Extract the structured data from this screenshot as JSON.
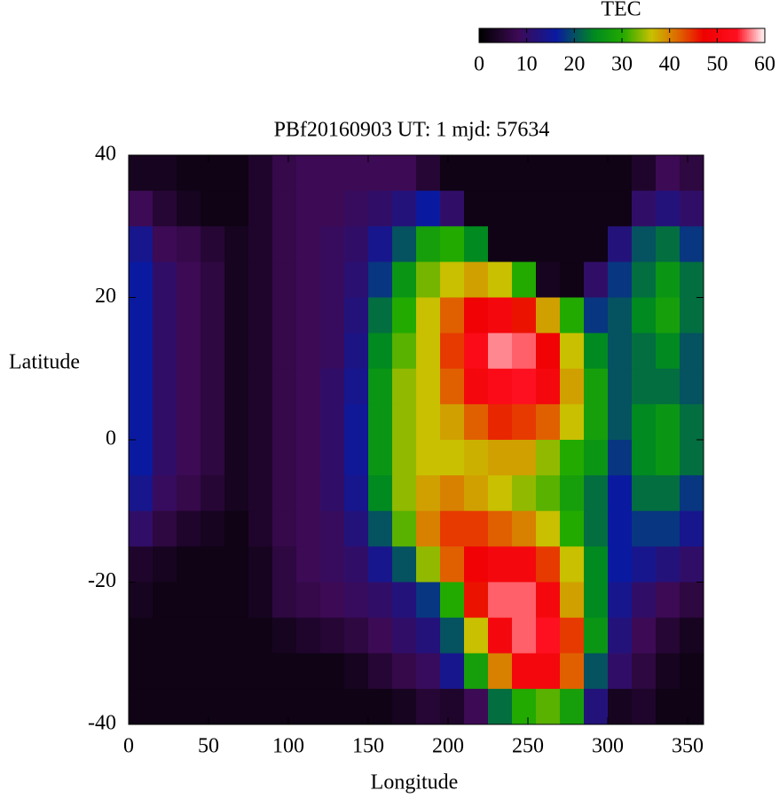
{
  "chart_data": {
    "type": "heatmap",
    "title": "PBf20160903  UT: 1  mjd: 57634",
    "xlabel": "Longitude",
    "ylabel": "Latitude",
    "colorbar_title": "TEC",
    "xlim": [
      0,
      360
    ],
    "ylim": [
      -40,
      40
    ],
    "xticks": [
      0,
      50,
      100,
      150,
      200,
      250,
      300,
      350
    ],
    "yticks": [
      -40,
      -20,
      0,
      20,
      40
    ],
    "clim": [
      0,
      60
    ],
    "cticks": [
      0,
      10,
      20,
      30,
      40,
      50,
      60
    ],
    "colorscale": [
      [
        0,
        "#000000"
      ],
      [
        8,
        "#3d0a55"
      ],
      [
        16,
        "#0a1aa0"
      ],
      [
        24,
        "#008a20"
      ],
      [
        30,
        "#22aa00"
      ],
      [
        36,
        "#c8c000"
      ],
      [
        42,
        "#e06000"
      ],
      [
        47,
        "#ee0000"
      ],
      [
        54,
        "#ff1020"
      ],
      [
        60,
        "#ffffff"
      ]
    ],
    "xbins": [
      0,
      15,
      30,
      45,
      60,
      75,
      90,
      105,
      120,
      135,
      150,
      165,
      180,
      195,
      210,
      225,
      240,
      255,
      270,
      285,
      300,
      315,
      330,
      345,
      360
    ],
    "ybins": [
      40,
      35,
      30,
      25,
      20,
      15,
      10,
      5,
      0,
      -5,
      -10,
      -15,
      -20,
      -25,
      -30,
      -35,
      -40
    ],
    "z": [
      [
        3,
        3,
        2,
        2,
        2,
        4,
        7,
        8,
        8,
        8,
        8,
        8,
        5,
        2,
        2,
        2,
        2,
        2,
        2,
        2,
        2,
        4,
        8,
        6
      ],
      [
        8,
        5,
        3,
        2,
        2,
        4,
        7,
        8,
        8,
        9,
        10,
        12,
        16,
        10,
        2,
        2,
        2,
        2,
        2,
        2,
        2,
        10,
        12,
        10
      ],
      [
        14,
        8,
        7,
        5,
        3,
        4,
        7,
        8,
        9,
        10,
        14,
        20,
        28,
        30,
        24,
        2,
        2,
        2,
        2,
        2,
        12,
        20,
        22,
        18
      ],
      [
        16,
        10,
        8,
        6,
        3,
        4,
        7,
        8,
        9,
        11,
        18,
        26,
        33,
        36,
        38,
        36,
        30,
        3,
        2,
        10,
        18,
        22,
        26,
        22
      ],
      [
        16,
        10,
        8,
        6,
        3,
        4,
        7,
        8,
        9,
        12,
        22,
        30,
        36,
        42,
        48,
        50,
        46,
        38,
        30,
        18,
        20,
        24,
        28,
        22
      ],
      [
        16,
        10,
        8,
        6,
        3,
        4,
        7,
        8,
        9,
        13,
        24,
        32,
        36,
        44,
        52,
        57,
        56,
        48,
        36,
        24,
        20,
        22,
        24,
        20
      ],
      [
        16,
        10,
        8,
        6,
        3,
        4,
        7,
        8,
        10,
        14,
        26,
        34,
        36,
        42,
        50,
        52,
        54,
        50,
        38,
        28,
        20,
        22,
        22,
        20
      ],
      [
        16,
        10,
        8,
        6,
        3,
        4,
        7,
        8,
        10,
        15,
        26,
        34,
        36,
        38,
        42,
        45,
        44,
        42,
        36,
        28,
        20,
        24,
        26,
        22
      ],
      [
        16,
        10,
        8,
        6,
        3,
        4,
        7,
        8,
        10,
        15,
        26,
        34,
        36,
        36,
        37,
        38,
        38,
        34,
        30,
        26,
        18,
        24,
        26,
        22
      ],
      [
        14,
        9,
        7,
        5,
        3,
        4,
        7,
        8,
        10,
        14,
        24,
        34,
        38,
        40,
        38,
        36,
        34,
        32,
        28,
        22,
        16,
        22,
        22,
        18
      ],
      [
        10,
        6,
        4,
        3,
        2,
        4,
        7,
        8,
        9,
        12,
        20,
        32,
        40,
        44,
        44,
        42,
        40,
        36,
        30,
        22,
        16,
        18,
        18,
        14
      ],
      [
        4,
        3,
        2,
        2,
        2,
        3,
        6,
        8,
        9,
        10,
        14,
        20,
        34,
        42,
        48,
        50,
        50,
        44,
        36,
        24,
        16,
        14,
        12,
        10
      ],
      [
        3,
        2,
        2,
        2,
        2,
        3,
        6,
        7,
        8,
        9,
        10,
        12,
        18,
        30,
        46,
        56,
        56,
        50,
        38,
        24,
        14,
        10,
        8,
        6
      ],
      [
        2,
        2,
        2,
        2,
        2,
        2,
        3,
        4,
        5,
        6,
        8,
        10,
        12,
        20,
        36,
        50,
        56,
        54,
        44,
        26,
        12,
        8,
        5,
        3
      ],
      [
        2,
        2,
        2,
        2,
        2,
        2,
        2,
        2,
        2,
        3,
        5,
        7,
        9,
        14,
        28,
        40,
        50,
        50,
        42,
        20,
        10,
        6,
        3,
        2
      ],
      [
        2,
        2,
        2,
        2,
        2,
        2,
        2,
        2,
        2,
        2,
        2,
        3,
        5,
        4,
        8,
        22,
        30,
        32,
        28,
        12,
        3,
        4,
        2,
        2
      ]
    ]
  }
}
